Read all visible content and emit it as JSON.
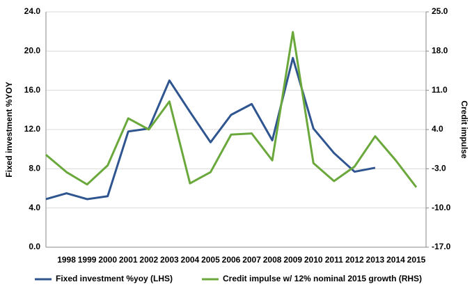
{
  "chart_data": {
    "type": "line",
    "categories": [
      null,
      "1998",
      "1999",
      "2000",
      "2001",
      "2002",
      "2003",
      "2004",
      "2005",
      "2006",
      "2007",
      "2008",
      "2009",
      "2010",
      "2011",
      "2012",
      "2013",
      "2014",
      "2015"
    ],
    "series": [
      {
        "name": "Fixed investment %yoy (LHS)",
        "color": "#2f5590",
        "values": [
          4.9,
          5.5,
          4.9,
          5.2,
          11.8,
          12.1,
          17.0,
          13.8,
          10.7,
          13.5,
          14.6,
          10.9,
          19.3,
          12.1,
          9.6,
          7.7,
          8.1,
          null,
          null
        ]
      },
      {
        "name": "Credit impulse w/ 12% nominal 2015 growth (RHS)",
        "color": "#6aa83c",
        "axis": "y2",
        "values": [
          -0.5,
          -3.6,
          -5.8,
          -2.4,
          6.0,
          4.0,
          9.0,
          -5.6,
          -3.6,
          3.1,
          3.3,
          -1.5,
          21.4,
          -2.0,
          -5.2,
          -2.6,
          2.8,
          -1.5,
          -6.3
        ]
      }
    ],
    "ylabel": "Fixed investment %YOY",
    "y2label": "Credit impulse",
    "ylim": [
      0,
      24
    ],
    "yticks": [
      {
        "value": 0,
        "label": "0.0"
      },
      {
        "value": 4,
        "label": "4.0"
      },
      {
        "value": 8,
        "label": "8.0"
      },
      {
        "value": 12,
        "label": "12.0"
      },
      {
        "value": 16,
        "label": "16.0"
      },
      {
        "value": 20,
        "label": "20.0"
      },
      {
        "value": 24,
        "label": "24.0"
      }
    ],
    "y2lim": [
      -17,
      25
    ],
    "y2ticks": [
      {
        "value": -17,
        "label": "-17.0"
      },
      {
        "value": -10,
        "label": "-10.0"
      },
      {
        "value": -3,
        "label": "-3.0"
      },
      {
        "value": 4,
        "label": "4.0"
      },
      {
        "value": 11,
        "label": "11.0"
      },
      {
        "value": 18,
        "label": "18.0"
      },
      {
        "value": 25,
        "label": "25.0"
      }
    ],
    "grid": true,
    "legend": "bottom"
  }
}
